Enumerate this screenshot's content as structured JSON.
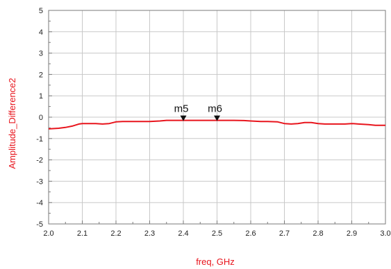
{
  "colors": {
    "series": "#e8141c",
    "axis_label": "#e8141c",
    "grid": "#c8c8c8",
    "frame": "#7a7a7a",
    "marker": "#111111",
    "background": "#ffffff"
  },
  "chart_data": {
    "type": "line",
    "title": "",
    "xlabel": "freq, GHz",
    "ylabel": "Amplitude_Difference2",
    "xlim": [
      2.0,
      3.0
    ],
    "ylim": [
      -5,
      5
    ],
    "grid": true,
    "legend": "none",
    "x_ticks": [
      "2.0",
      "2.1",
      "2.2",
      "2.3",
      "2.4",
      "2.5",
      "2.6",
      "2.7",
      "2.8",
      "2.9",
      "3.0"
    ],
    "y_ticks": [
      "5",
      "4",
      "3",
      "2",
      "1",
      "0",
      "-1",
      "-2",
      "-3",
      "-4",
      "-5"
    ],
    "series": [
      {
        "x": [
          2.0,
          2.03,
          2.05,
          2.07,
          2.09,
          2.1,
          2.12,
          2.14,
          2.16,
          2.18,
          2.2,
          2.22,
          2.25,
          2.28,
          2.3,
          2.33,
          2.35,
          2.38,
          2.4,
          2.43,
          2.45,
          2.48,
          2.5,
          2.53,
          2.55,
          2.58,
          2.6,
          2.63,
          2.65,
          2.68,
          2.7,
          2.72,
          2.74,
          2.76,
          2.78,
          2.8,
          2.82,
          2.85,
          2.88,
          2.9,
          2.92,
          2.95,
          2.97,
          3.0
        ],
        "y": [
          -0.55,
          -0.52,
          -0.48,
          -0.42,
          -0.32,
          -0.3,
          -0.3,
          -0.3,
          -0.32,
          -0.3,
          -0.22,
          -0.2,
          -0.2,
          -0.2,
          -0.2,
          -0.18,
          -0.15,
          -0.15,
          -0.15,
          -0.15,
          -0.15,
          -0.15,
          -0.15,
          -0.15,
          -0.15,
          -0.16,
          -0.18,
          -0.2,
          -0.2,
          -0.22,
          -0.3,
          -0.32,
          -0.3,
          -0.25,
          -0.25,
          -0.3,
          -0.32,
          -0.32,
          -0.32,
          -0.3,
          -0.32,
          -0.35,
          -0.38,
          -0.38
        ]
      }
    ],
    "markers": [
      {
        "label": "m5",
        "x": 2.4,
        "y": -0.15
      },
      {
        "label": "m6",
        "x": 2.5,
        "y": -0.15
      }
    ]
  }
}
